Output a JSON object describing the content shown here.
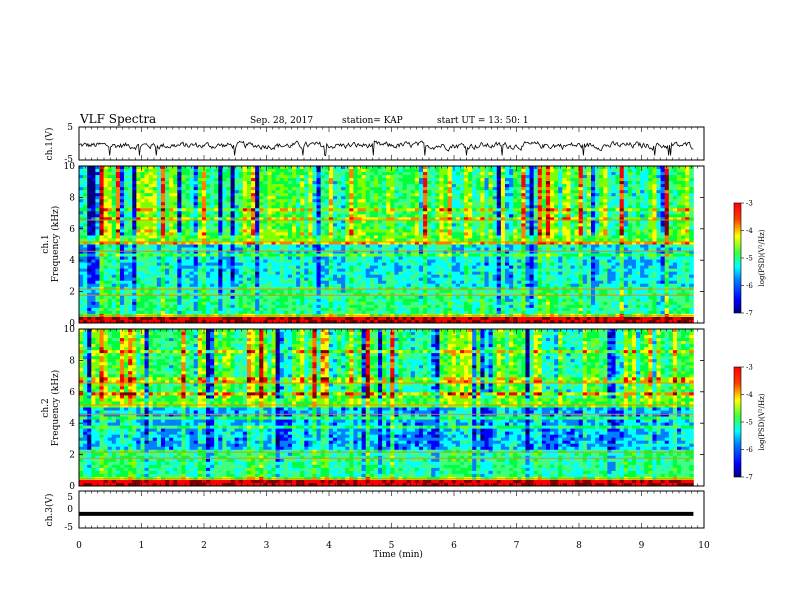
{
  "header": {
    "title": "VLF Spectra",
    "date": "Sep. 28, 2017",
    "station": "station= KAP",
    "start": "start UT =  13: 50: 1"
  },
  "colors": {
    "spectrum": [
      "#00007f",
      "#0000ff",
      "#0080ff",
      "#00ffff",
      "#40ff80",
      "#00ff40",
      "#80ff00",
      "#ffff00",
      "#ff8000",
      "#ff0000",
      "#7f0000"
    ]
  },
  "chart_data": [
    {
      "type": "line",
      "name": "ch1-waveform",
      "ylabel": "ch.1(V)",
      "ylim": [
        -5,
        5
      ],
      "yticks": [
        "5",
        "-5"
      ],
      "xlim": [
        0,
        10
      ],
      "description_level": "noisy waveform, roughly centered near 0 V with amplitude ~2-3 V"
    },
    {
      "type": "heatmap",
      "name": "ch1-spectrogram",
      "ylabel_top": "ch.1",
      "ylabel": "Frequency (kHz)",
      "ylim": [
        0,
        10
      ],
      "yticks": [
        "0",
        "2",
        "4",
        "6",
        "8",
        "10"
      ],
      "xlim": [
        0,
        10
      ],
      "colorbar": {
        "label": "log(PSD)(V²/Hz)",
        "range": [
          -7,
          -3
        ],
        "ticks": [
          "-3",
          "-4",
          "-5",
          "-6",
          "-7"
        ]
      }
    },
    {
      "type": "heatmap",
      "name": "ch2-spectrogram",
      "ylabel_top": "ch.2",
      "ylabel": "Frequency (kHz)",
      "ylim": [
        0,
        10
      ],
      "yticks": [
        "0",
        "2",
        "4",
        "6",
        "8",
        "10"
      ],
      "xlim": [
        0,
        10
      ],
      "colorbar": {
        "label": "log(PSD)(V²/Hz)",
        "range": [
          -7,
          -3
        ],
        "ticks": [
          "-3",
          "-4",
          "-5",
          "-6",
          "-7"
        ]
      }
    },
    {
      "type": "line",
      "name": "ch3-waveform",
      "ylabel": "ch.3(V)",
      "ylim": [
        -5,
        5
      ],
      "yticks": [
        "5",
        "0",
        "-5"
      ],
      "xlim": [
        0,
        10
      ],
      "level": -1.2
    }
  ],
  "xaxis": {
    "label": "Time (min)",
    "ticks": [
      "0",
      "1",
      "2",
      "3",
      "4",
      "5",
      "6",
      "7",
      "8",
      "9",
      "10"
    ]
  }
}
